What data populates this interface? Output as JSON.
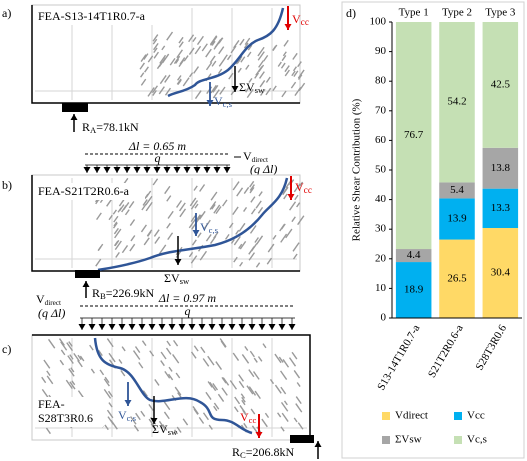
{
  "panels": [
    {
      "label": "a)",
      "name": [
        "FEA-S13-14T1R0.7-a"
      ],
      "vcc": {
        "main": "V",
        "sub": "cc"
      },
      "vsw": {
        "main": "ΣV",
        "sub": "sw"
      },
      "vcs": {
        "main": "V",
        "sub": "c,s"
      },
      "reaction": {
        "main": "R",
        "sub": "A",
        "tail": "=78.1kN"
      }
    },
    {
      "label": "b)",
      "name": [
        "FEA-S21T2R0.6-a"
      ],
      "span": "Δl = 0.65 m",
      "load": "q",
      "direct": {
        "main": "V",
        "sub": "direct"
      },
      "direct_note": "(q Δl)",
      "vcc": {
        "main": "V",
        "sub": "cc"
      },
      "vsw": {
        "main": "ΣV",
        "sub": "sw"
      },
      "vcs": {
        "main": "V",
        "sub": "c,s"
      },
      "reaction": {
        "main": "R",
        "sub": "B",
        "tail": "=226.9kN"
      }
    },
    {
      "label": "c)",
      "name": [
        "FEA-",
        "S28T3R0.6"
      ],
      "span": "Δl = 0.97 m",
      "load": "q",
      "direct": {
        "main": "V",
        "sub": "direct"
      },
      "direct_note": "(q Δl)",
      "vcc": {
        "main": "V",
        "sub": "cc"
      },
      "vsw": {
        "main": "ΣV",
        "sub": "sw"
      },
      "vcs": {
        "main": "V",
        "sub": "c,s"
      },
      "reaction": {
        "main": "R",
        "sub": "C",
        "tail": "=206.8kN"
      }
    }
  ],
  "chart_data": {
    "type": "stacked-bar",
    "panel_label": "d)",
    "ylabel": "Relative Shear Contribution (%)",
    "categories": [
      "S13-14T1R0.7-a",
      "S21T2R0.6-a",
      "S28T3R0.6"
    ],
    "top_labels": [
      "Type 1",
      "Type 2",
      "Type 3"
    ],
    "series": [
      {
        "name": "Vdirect",
        "color": "#ffd966",
        "values": [
          null,
          26.5,
          30.4
        ]
      },
      {
        "name": "Vcc",
        "color": "#00b0f0",
        "values": [
          18.9,
          13.9,
          13.3
        ]
      },
      {
        "name": "ΣVsw",
        "color": "#a6a6a6",
        "values": [
          4.4,
          5.4,
          13.8
        ]
      },
      {
        "name": "Vc,s",
        "color": "#c5e0b4",
        "values": [
          76.7,
          54.2,
          42.5
        ]
      }
    ],
    "ylim": [
      0,
      100
    ],
    "yticks": [
      0,
      10,
      20,
      30,
      40,
      50,
      60,
      70,
      80,
      90,
      100
    ]
  }
}
